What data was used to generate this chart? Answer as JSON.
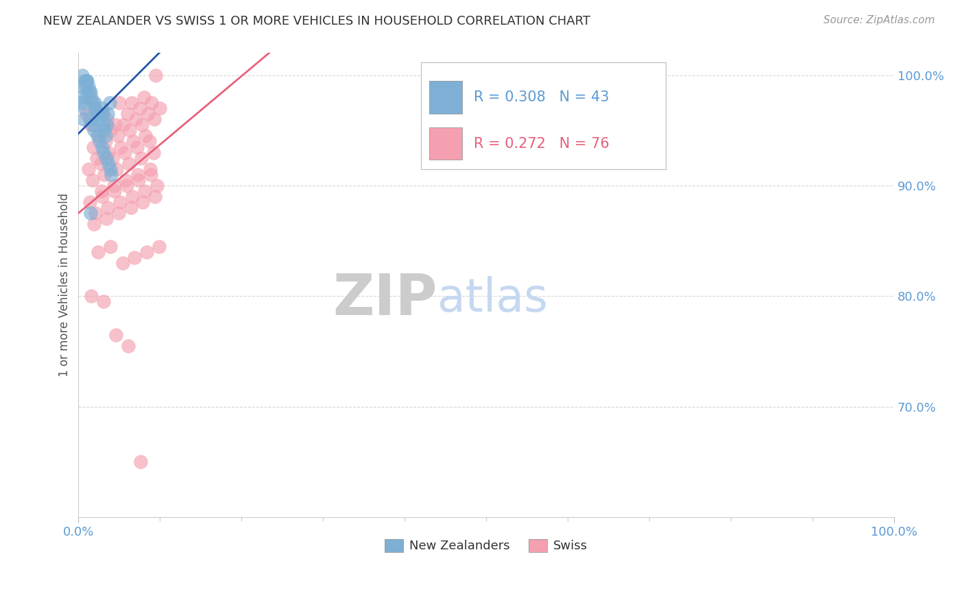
{
  "title": "NEW ZEALANDER VS SWISS 1 OR MORE VEHICLES IN HOUSEHOLD CORRELATION CHART",
  "source_text": "Source: ZipAtlas.com",
  "ylabel": "1 or more Vehicles in Household",
  "r_nz": 0.308,
  "n_nz": 43,
  "r_sw": 0.272,
  "n_sw": 76,
  "blue_color": "#7EB0D5",
  "pink_color": "#F4A0B0",
  "line_blue": "#2255AA",
  "line_pink": "#E8607A",
  "tick_color": "#5B9BD5",
  "grid_color": "#CCCCCC",
  "title_color": "#333333",
  "source_color": "#999999",
  "ylabel_color": "#555555",
  "wm_zip_color": "#CCCCCC",
  "wm_atlas_color": "#C5D8F0",
  "legend_text_color_blue": "#5B9BD5",
  "legend_text_color_pink": "#E8607A",
  "xmin": 0,
  "xmax": 100,
  "ymin": 60,
  "ymax": 102,
  "nz_x": [
    0.3,
    0.5,
    0.8,
    0.9,
    1.0,
    1.1,
    1.2,
    1.3,
    1.5,
    1.6,
    1.8,
    2.0,
    2.1,
    2.2,
    2.4,
    2.5,
    2.7,
    2.8,
    3.0,
    3.1,
    3.2,
    3.3,
    3.5,
    3.6,
    3.8,
    0.4,
    0.6,
    0.7,
    1.0,
    1.4,
    1.7,
    1.9,
    2.3,
    2.6,
    2.9,
    3.1,
    3.4,
    3.7,
    3.9,
    4.0,
    0.5,
    0.9,
    1.5
  ],
  "nz_y": [
    97.5,
    99.0,
    99.5,
    99.0,
    99.5,
    99.5,
    99.0,
    98.5,
    98.5,
    98.0,
    97.5,
    97.5,
    97.0,
    96.5,
    96.5,
    96.0,
    96.5,
    97.0,
    96.5,
    95.5,
    95.0,
    94.5,
    95.5,
    96.5,
    97.5,
    98.0,
    96.0,
    97.0,
    98.0,
    96.0,
    95.5,
    95.0,
    94.5,
    94.0,
    93.5,
    93.0,
    92.5,
    92.0,
    91.5,
    91.0,
    100.0,
    99.5,
    87.5
  ],
  "sw_x": [
    1.0,
    2.0,
    3.5,
    5.0,
    6.5,
    8.0,
    9.5,
    1.5,
    3.0,
    4.5,
    6.0,
    7.5,
    9.0,
    2.5,
    4.0,
    5.5,
    7.0,
    8.5,
    10.0,
    1.8,
    3.3,
    4.8,
    6.3,
    7.8,
    9.3,
    2.2,
    3.7,
    5.2,
    6.7,
    8.2,
    1.2,
    2.7,
    4.2,
    5.7,
    7.2,
    8.7,
    1.7,
    3.2,
    4.7,
    6.2,
    7.7,
    9.2,
    2.8,
    4.3,
    5.8,
    7.3,
    8.8,
    1.4,
    2.9,
    4.4,
    5.9,
    7.4,
    8.9,
    2.1,
    3.6,
    5.1,
    6.6,
    8.1,
    9.6,
    1.9,
    3.4,
    4.9,
    6.4,
    7.9,
    9.4,
    2.4,
    3.9,
    5.4,
    6.9,
    8.4,
    9.9,
    1.6,
    3.1,
    4.6,
    6.1,
    7.6
  ],
  "sw_y": [
    96.5,
    97.0,
    96.0,
    97.5,
    97.5,
    98.0,
    100.0,
    95.5,
    96.5,
    95.5,
    96.5,
    97.0,
    97.5,
    94.5,
    95.0,
    95.5,
    96.0,
    96.5,
    97.0,
    93.5,
    94.0,
    94.5,
    95.0,
    95.5,
    96.0,
    92.5,
    93.0,
    93.5,
    94.0,
    94.5,
    91.5,
    92.0,
    92.5,
    93.0,
    93.5,
    94.0,
    90.5,
    91.0,
    91.5,
    92.0,
    92.5,
    93.0,
    89.5,
    90.0,
    90.5,
    91.0,
    91.5,
    88.5,
    89.0,
    89.5,
    90.0,
    90.5,
    91.0,
    87.5,
    88.0,
    88.5,
    89.0,
    89.5,
    90.0,
    86.5,
    87.0,
    87.5,
    88.0,
    88.5,
    89.0,
    84.0,
    84.5,
    83.0,
    83.5,
    84.0,
    84.5,
    80.0,
    79.5,
    76.5,
    75.5,
    65.0
  ]
}
